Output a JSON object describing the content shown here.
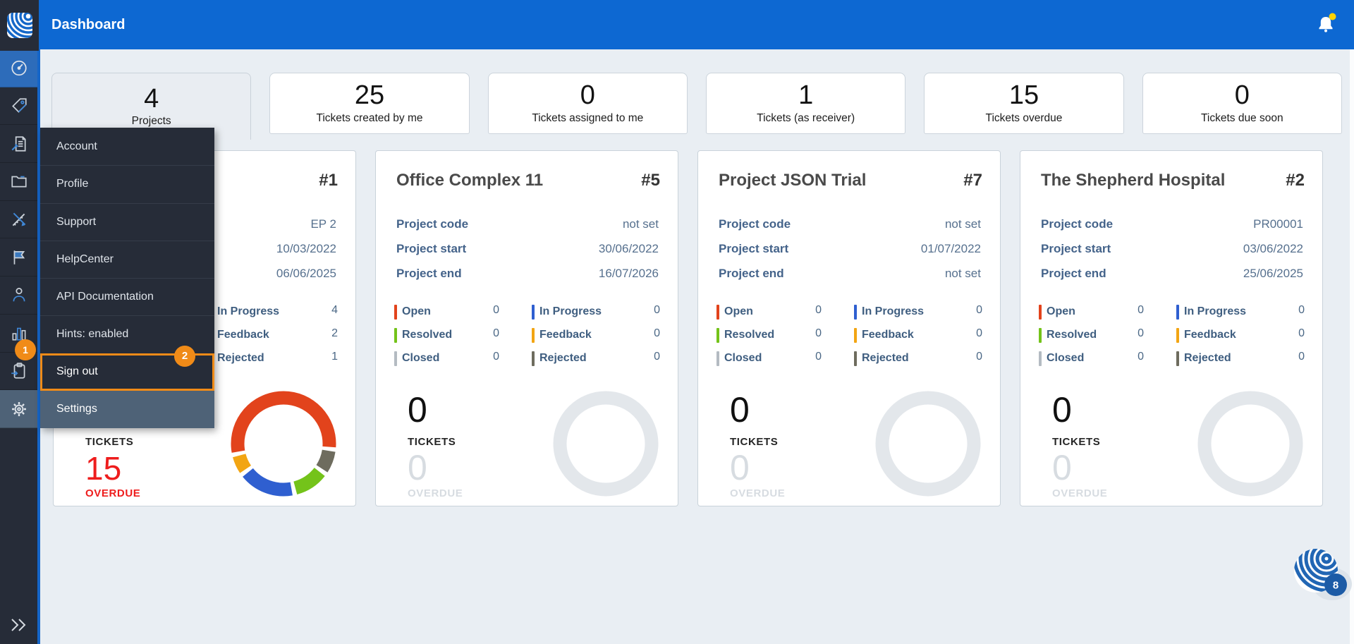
{
  "header": {
    "title": "Dashboard"
  },
  "colors": {
    "header_bg": "#0d68d2",
    "sidebar_bg": "#262c38",
    "accent_orange": "#f08b18",
    "menu_selected_bg": "#4e6277",
    "overdue_red": "#ee1d1d",
    "donut_empty": "#e3e7eb",
    "notification_dot": "#ffd200"
  },
  "status_colors": {
    "open": "#e2431c",
    "resolved": "#74c31a",
    "closed": "#b4bbc2",
    "in_progress": "#2f5fd0",
    "feedback": "#f2a513",
    "rejected": "#6e6c5e"
  },
  "sidebar": {
    "badge": "1",
    "icons": [
      "dashboard",
      "tags",
      "reports",
      "folder",
      "tools",
      "flag",
      "user",
      "statistics",
      "tasks",
      "settings"
    ]
  },
  "user_menu": {
    "items": [
      {
        "label": "Account"
      },
      {
        "label": "Profile"
      },
      {
        "label": "Support"
      },
      {
        "label": "HelpCenter"
      },
      {
        "label": "API Documentation"
      },
      {
        "label": "Hints: enabled"
      },
      {
        "label": "Sign out",
        "badge": "2",
        "highlighted": true
      },
      {
        "label": "Settings",
        "selected": true
      }
    ]
  },
  "stats": [
    {
      "value": "4",
      "label": "Projects",
      "selected": true
    },
    {
      "value": "25",
      "label": "Tickets created by me"
    },
    {
      "value": "0",
      "label": "Tickets assigned to me"
    },
    {
      "value": "1",
      "label": "Tickets (as receiver)"
    },
    {
      "value": "15",
      "label": "Tickets overdue"
    },
    {
      "value": "0",
      "label": "Tickets due soon"
    }
  ],
  "card_labels": {
    "tickets": "TICKETS",
    "overdue": "OVERDUE"
  },
  "projects": [
    {
      "number": "#1",
      "code_value": "EP 2",
      "start_value": "10/03/2022",
      "end_value": "06/06/2025",
      "statuses_right": [
        {
          "key": "in_progress",
          "label": "In Progress",
          "value": "4"
        },
        {
          "key": "feedback",
          "label": "Feedback",
          "value": "2"
        },
        {
          "key": "rejected",
          "label": "Rejected",
          "value": "1"
        }
      ],
      "overdue_value": "15",
      "donut_segments": [
        {
          "key": "open",
          "start": 260,
          "sweep": 194
        },
        {
          "key": "rejected",
          "start": 99,
          "sweep": 24
        },
        {
          "key": "resolved",
          "start": 128,
          "sweep": 37
        },
        {
          "key": "in_progress",
          "start": 170,
          "sweep": 61
        },
        {
          "key": "feedback",
          "start": 236,
          "sweep": 19
        }
      ]
    },
    {
      "title": "Office Complex 11",
      "number": "#5",
      "meta": [
        {
          "label": "Project code",
          "value": "not set"
        },
        {
          "label": "Project start",
          "value": "30/06/2022"
        },
        {
          "label": "Project end",
          "value": "16/07/2026"
        }
      ],
      "statuses_left": [
        {
          "key": "open",
          "label": "Open",
          "value": "0"
        },
        {
          "key": "resolved",
          "label": "Resolved",
          "value": "0"
        },
        {
          "key": "closed",
          "label": "Closed",
          "value": "0"
        }
      ],
      "statuses_right": [
        {
          "key": "in_progress",
          "label": "In Progress",
          "value": "0"
        },
        {
          "key": "feedback",
          "label": "Feedback",
          "value": "0"
        },
        {
          "key": "rejected",
          "label": "Rejected",
          "value": "0"
        }
      ],
      "tickets_value": "0",
      "overdue_value": "0"
    },
    {
      "title": "Project JSON Trial",
      "number": "#7",
      "meta": [
        {
          "label": "Project code",
          "value": "not set"
        },
        {
          "label": "Project start",
          "value": "01/07/2022"
        },
        {
          "label": "Project end",
          "value": "not set"
        }
      ],
      "statuses_left": [
        {
          "key": "open",
          "label": "Open",
          "value": "0"
        },
        {
          "key": "resolved",
          "label": "Resolved",
          "value": "0"
        },
        {
          "key": "closed",
          "label": "Closed",
          "value": "0"
        }
      ],
      "statuses_right": [
        {
          "key": "in_progress",
          "label": "In Progress",
          "value": "0"
        },
        {
          "key": "feedback",
          "label": "Feedback",
          "value": "0"
        },
        {
          "key": "rejected",
          "label": "Rejected",
          "value": "0"
        }
      ],
      "tickets_value": "0",
      "overdue_value": "0"
    },
    {
      "title": "The Shepherd Hospital",
      "number": "#2",
      "meta": [
        {
          "label": "Project code",
          "value": "PR00001"
        },
        {
          "label": "Project start",
          "value": "03/06/2022"
        },
        {
          "label": "Project end",
          "value": "25/06/2025"
        }
      ],
      "statuses_left": [
        {
          "key": "open",
          "label": "Open",
          "value": "0"
        },
        {
          "key": "resolved",
          "label": "Resolved",
          "value": "0"
        },
        {
          "key": "closed",
          "label": "Closed",
          "value": "0"
        }
      ],
      "statuses_right": [
        {
          "key": "in_progress",
          "label": "In Progress",
          "value": "0"
        },
        {
          "key": "feedback",
          "label": "Feedback",
          "value": "0"
        },
        {
          "key": "rejected",
          "label": "Rejected",
          "value": "0"
        }
      ],
      "tickets_value": "0",
      "overdue_value": "0"
    }
  ],
  "floating_logo_badge": "8"
}
